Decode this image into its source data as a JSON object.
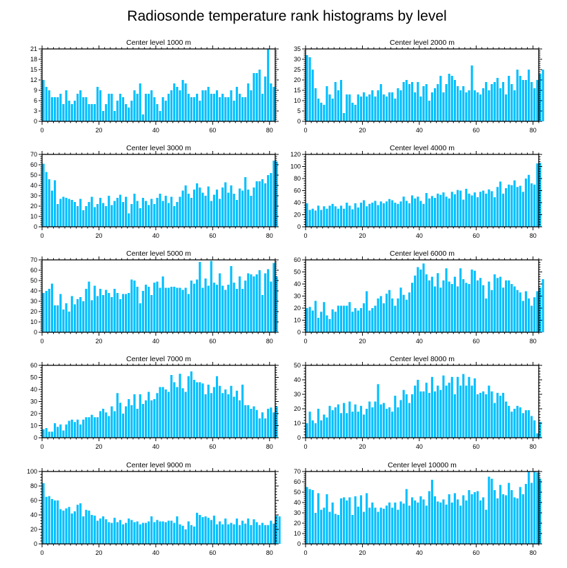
{
  "figure_title": "Radiosonde temperature rank histograms by level",
  "bar_color": "#00bfff",
  "chart_data": [
    {
      "type": "bar",
      "title": "Center level 1000 m",
      "xlim": [
        0,
        82
      ],
      "xticks": [
        0,
        20,
        40,
        60,
        80
      ],
      "ylim": [
        0,
        21
      ],
      "yticks": [
        0,
        3,
        6,
        9,
        12,
        15,
        18,
        21
      ],
      "values": [
        12,
        10,
        9,
        7,
        7,
        7,
        8,
        5,
        9,
        6,
        5,
        6,
        8,
        9,
        7,
        7,
        5,
        5,
        5,
        10,
        9,
        3,
        5,
        8,
        8,
        3,
        6,
        8,
        7,
        5,
        4,
        6,
        9,
        8,
        11,
        2,
        8,
        8,
        9,
        7,
        5,
        3,
        7,
        6,
        8,
        9,
        11,
        10,
        9,
        12,
        11,
        8,
        7,
        7,
        8,
        6,
        9,
        9,
        10,
        8,
        8,
        9,
        7,
        8,
        7,
        7,
        9,
        6,
        10,
        8,
        7,
        7,
        11,
        9,
        14,
        14,
        15,
        8,
        13,
        21,
        11,
        10
      ]
    },
    {
      "type": "bar",
      "title": "Center level 2000 m",
      "xlim": [
        0,
        82
      ],
      "xticks": [
        0,
        20,
        40,
        60,
        80
      ],
      "ylim": [
        0,
        35
      ],
      "yticks": [
        0,
        5,
        10,
        15,
        20,
        25,
        30,
        35
      ],
      "values": [
        32,
        31,
        25,
        16,
        11,
        9,
        8,
        17,
        13,
        11,
        19,
        15,
        20,
        4,
        13,
        13,
        9,
        8,
        13,
        12,
        14,
        12,
        13,
        15,
        12,
        15,
        18,
        13,
        12,
        14,
        14,
        11,
        16,
        15,
        19,
        20,
        18,
        19,
        14,
        19,
        12,
        17,
        18,
        10,
        14,
        16,
        18,
        22,
        14,
        18,
        23,
        22,
        20,
        17,
        15,
        17,
        14,
        15,
        27,
        15,
        14,
        13,
        16,
        19,
        15,
        18,
        19,
        21,
        16,
        19,
        13,
        22,
        18,
        15,
        25,
        22,
        20,
        20,
        25,
        19,
        16,
        20,
        23,
        25
      ]
    },
    {
      "type": "bar",
      "title": "Center level 3000 m",
      "xlim": [
        0,
        82
      ],
      "xticks": [
        0,
        20,
        40,
        60,
        80
      ],
      "ylim": [
        0,
        70
      ],
      "yticks": [
        0,
        10,
        20,
        30,
        40,
        50,
        60,
        70
      ],
      "values": [
        61,
        53,
        46,
        35,
        45,
        22,
        27,
        29,
        28,
        27,
        26,
        24,
        20,
        27,
        16,
        20,
        24,
        29,
        19,
        22,
        28,
        23,
        20,
        30,
        21,
        25,
        28,
        31,
        24,
        29,
        13,
        22,
        32,
        25,
        18,
        28,
        25,
        21,
        27,
        22,
        28,
        32,
        25,
        30,
        23,
        29,
        20,
        24,
        29,
        35,
        40,
        32,
        28,
        36,
        42,
        38,
        33,
        30,
        39,
        25,
        31,
        36,
        27,
        38,
        43,
        33,
        40,
        32,
        26,
        37,
        35,
        48,
        36,
        30,
        38,
        44,
        44,
        46,
        42,
        50,
        52,
        64,
        63
      ]
    },
    {
      "type": "bar",
      "title": "Center level 4000 m",
      "xlim": [
        0,
        82
      ],
      "xticks": [
        0,
        20,
        40,
        60,
        80
      ],
      "ylim": [
        0,
        120
      ],
      "yticks": [
        0,
        20,
        40,
        60,
        80,
        100,
        120
      ],
      "values": [
        39,
        28,
        30,
        27,
        35,
        28,
        34,
        30,
        35,
        38,
        34,
        30,
        35,
        30,
        40,
        35,
        29,
        39,
        32,
        40,
        44,
        34,
        38,
        40,
        43,
        36,
        42,
        39,
        42,
        46,
        44,
        40,
        38,
        42,
        50,
        43,
        39,
        52,
        47,
        50,
        43,
        38,
        56,
        47,
        51,
        48,
        55,
        53,
        57,
        50,
        47,
        58,
        54,
        61,
        60,
        45,
        63,
        55,
        52,
        57,
        49,
        58,
        60,
        55,
        62,
        59,
        49,
        66,
        75,
        55,
        64,
        70,
        69,
        77,
        66,
        68,
        58,
        80,
        86,
        72,
        70,
        105,
        106
      ]
    },
    {
      "type": "bar",
      "title": "Center level 5000 m",
      "xlim": [
        0,
        82
      ],
      "xticks": [
        0,
        20,
        40,
        60,
        80
      ],
      "ylim": [
        0,
        70
      ],
      "yticks": [
        0,
        10,
        20,
        30,
        40,
        50,
        60,
        70
      ],
      "values": [
        38,
        40,
        42,
        47,
        26,
        26,
        37,
        22,
        28,
        20,
        35,
        27,
        32,
        34,
        30,
        42,
        49,
        31,
        45,
        35,
        42,
        36,
        41,
        38,
        34,
        42,
        38,
        32,
        37,
        37,
        38,
        51,
        50,
        44,
        28,
        40,
        46,
        44,
        36,
        48,
        49,
        43,
        54,
        43,
        43,
        44,
        44,
        43,
        43,
        41,
        43,
        37,
        50,
        47,
        51,
        68,
        43,
        52,
        45,
        69,
        48,
        46,
        57,
        45,
        41,
        46,
        64,
        48,
        42,
        54,
        42,
        50,
        57,
        56,
        54,
        56,
        60,
        36,
        57,
        61,
        49,
        67,
        54
      ]
    },
    {
      "type": "bar",
      "title": "Center level 6000 m",
      "xlim": [
        0,
        82
      ],
      "xticks": [
        0,
        20,
        40,
        60,
        80
      ],
      "ylim": [
        0,
        60
      ],
      "yticks": [
        0,
        10,
        20,
        30,
        40,
        50,
        60
      ],
      "values": [
        20,
        21,
        18,
        26,
        12,
        17,
        25,
        14,
        11,
        19,
        17,
        22,
        22,
        22,
        22,
        25,
        17,
        20,
        18,
        20,
        24,
        34,
        18,
        20,
        22,
        28,
        30,
        24,
        32,
        35,
        28,
        22,
        28,
        37,
        31,
        27,
        33,
        41,
        47,
        54,
        52,
        57,
        48,
        43,
        46,
        38,
        49,
        37,
        43,
        53,
        42,
        40,
        46,
        38,
        53,
        44,
        41,
        40,
        52,
        51,
        43,
        45,
        39,
        28,
        42,
        35,
        48,
        45,
        46,
        37,
        43,
        43,
        40,
        38,
        35,
        33,
        26,
        34,
        28,
        22,
        29,
        34,
        37,
        44
      ]
    },
    {
      "type": "bar",
      "title": "Center level 7000 m",
      "xlim": [
        0,
        82
      ],
      "xticks": [
        0,
        20,
        40,
        60,
        80
      ],
      "ylim": [
        0,
        60
      ],
      "yticks": [
        0,
        10,
        20,
        30,
        40,
        50,
        60
      ],
      "values": [
        7,
        8,
        5,
        5,
        12,
        9,
        11,
        6,
        11,
        14,
        15,
        13,
        15,
        11,
        15,
        17,
        17,
        19,
        17,
        17,
        22,
        24,
        21,
        18,
        26,
        22,
        37,
        29,
        20,
        26,
        32,
        27,
        36,
        24,
        36,
        28,
        31,
        38,
        31,
        32,
        37,
        42,
        42,
        40,
        38,
        52,
        46,
        42,
        53,
        41,
        38,
        51,
        55,
        48,
        46,
        46,
        45,
        36,
        44,
        37,
        42,
        51,
        43,
        37,
        40,
        36,
        43,
        34,
        39,
        31,
        44,
        27,
        27,
        24,
        26,
        23,
        16,
        21,
        16,
        24,
        25,
        21,
        26
      ]
    },
    {
      "type": "bar",
      "title": "Center level 8000 m",
      "xlim": [
        0,
        82
      ],
      "xticks": [
        0,
        20,
        40,
        60,
        80
      ],
      "ylim": [
        0,
        50
      ],
      "yticks": [
        0,
        10,
        20,
        30,
        40,
        50
      ],
      "values": [
        10,
        18,
        12,
        10,
        20,
        12,
        16,
        14,
        22,
        19,
        21,
        23,
        17,
        24,
        17,
        25,
        18,
        23,
        18,
        22,
        16,
        20,
        25,
        21,
        25,
        37,
        23,
        24,
        20,
        21,
        18,
        29,
        21,
        26,
        33,
        30,
        24,
        30,
        36,
        40,
        32,
        32,
        38,
        31,
        42,
        32,
        36,
        33,
        43,
        36,
        38,
        42,
        30,
        42,
        36,
        44,
        36,
        42,
        36,
        41,
        30,
        31,
        32,
        30,
        36,
        32,
        24,
        31,
        29,
        31,
        25,
        22,
        18,
        20,
        22,
        21,
        17,
        19,
        19,
        15,
        12,
        3,
        11
      ]
    },
    {
      "type": "bar",
      "title": "Center level 9000 m",
      "xlim": [
        0,
        82
      ],
      "xticks": [
        0,
        20,
        40,
        60,
        80
      ],
      "ylim": [
        0,
        100
      ],
      "yticks": [
        0,
        20,
        40,
        60,
        80,
        100
      ],
      "values": [
        84,
        65,
        66,
        62,
        60,
        60,
        48,
        46,
        49,
        51,
        42,
        45,
        54,
        56,
        38,
        47,
        46,
        40,
        39,
        32,
        35,
        38,
        34,
        30,
        29,
        36,
        30,
        33,
        27,
        29,
        35,
        33,
        30,
        31,
        27,
        29,
        29,
        31,
        38,
        30,
        33,
        31,
        31,
        30,
        32,
        32,
        29,
        38,
        27,
        25,
        20,
        31,
        26,
        24,
        43,
        40,
        37,
        38,
        36,
        33,
        39,
        27,
        31,
        27,
        35,
        27,
        29,
        27,
        35,
        26,
        32,
        28,
        35,
        26,
        34,
        30,
        26,
        29,
        26,
        26,
        32,
        28,
        39,
        38
      ]
    },
    {
      "type": "bar",
      "title": "Center level 10000 m",
      "xlim": [
        0,
        82
      ],
      "xticks": [
        0,
        20,
        40,
        60,
        80
      ],
      "ylim": [
        0,
        70
      ],
      "yticks": [
        0,
        10,
        20,
        30,
        40,
        50,
        60,
        70
      ],
      "values": [
        55,
        53,
        52,
        30,
        49,
        33,
        35,
        48,
        31,
        40,
        29,
        28,
        44,
        45,
        42,
        45,
        28,
        46,
        36,
        47,
        31,
        49,
        35,
        40,
        35,
        31,
        35,
        34,
        37,
        40,
        35,
        40,
        33,
        41,
        39,
        53,
        37,
        45,
        42,
        40,
        46,
        43,
        37,
        51,
        62,
        46,
        41,
        40,
        43,
        38,
        48,
        40,
        49,
        43,
        37,
        47,
        42,
        52,
        48,
        50,
        51,
        42,
        45,
        33,
        65,
        63,
        52,
        44,
        57,
        48,
        47,
        59,
        52,
        45,
        44,
        55,
        48,
        58,
        71,
        59,
        70,
        69,
        63
      ]
    }
  ]
}
